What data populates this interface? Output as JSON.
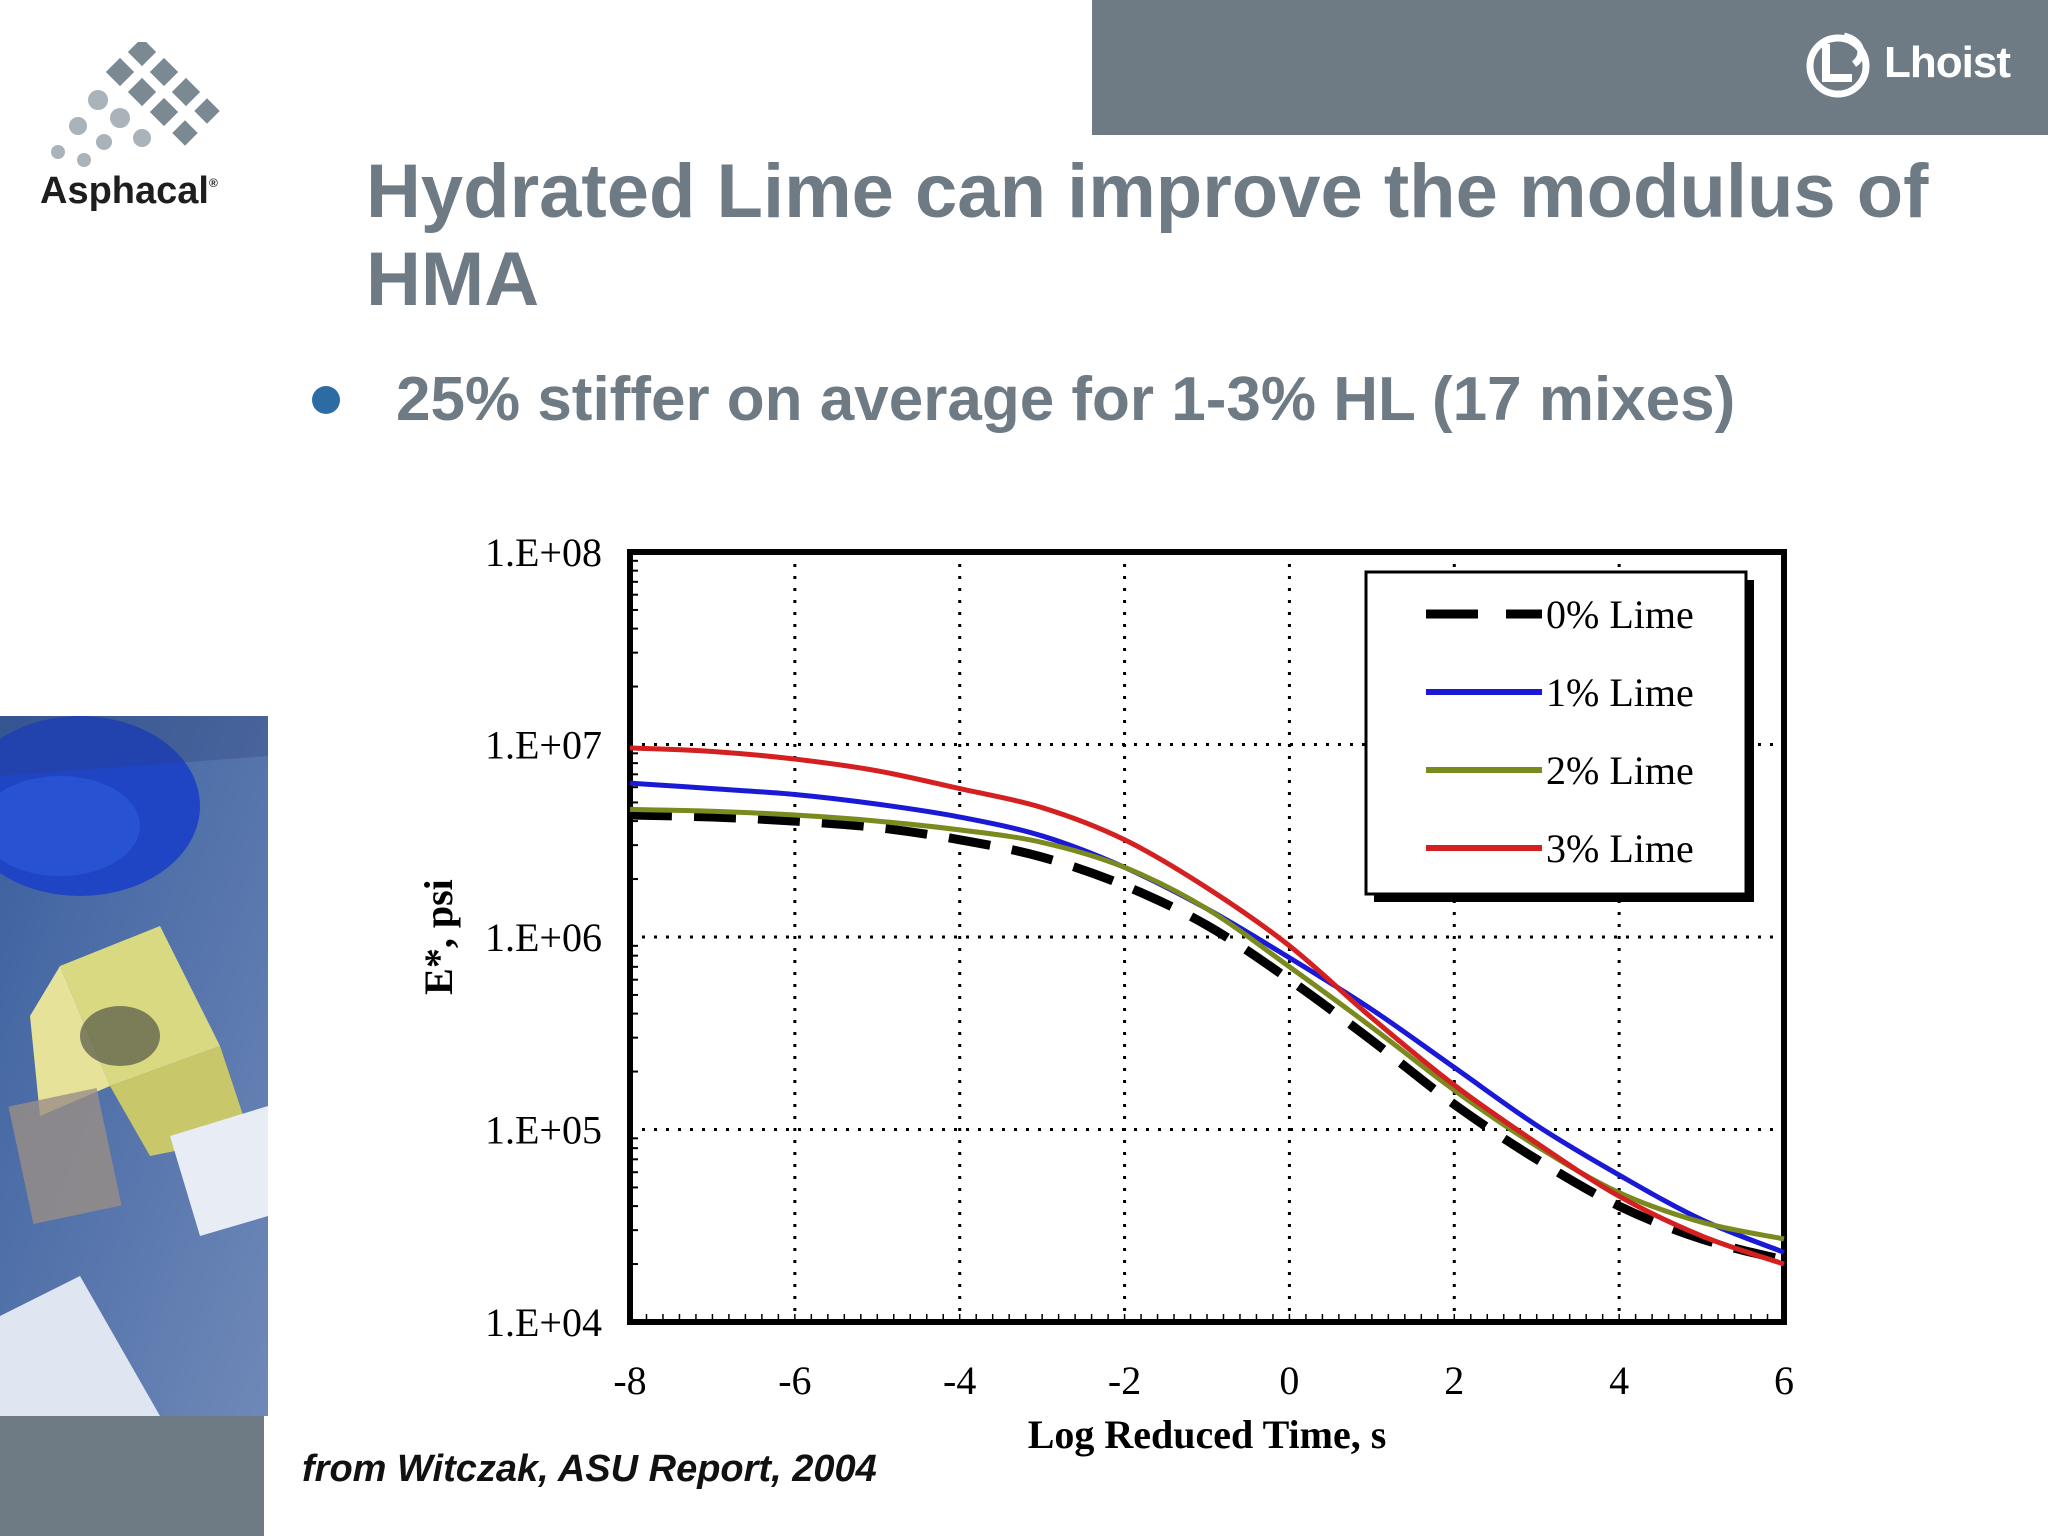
{
  "header": {
    "left_logo": {
      "name": "Asphacal",
      "reg_mark": "®",
      "icon": "diamond-grid-icon"
    },
    "right_logo": {
      "name": "Lhoist",
      "icon": "lhoist-mark-icon"
    },
    "colors": {
      "bar": "#6e7a84",
      "title": "#6e7a84",
      "bullet": "#2c6ba3"
    }
  },
  "slide": {
    "title": "Hydrated Lime can improve the modulus of HMA",
    "bullet": "25% stiffer on average for 1-3% HL (17 mixes)",
    "source": "from Witczak, ASU Report, 2004"
  },
  "chart_data": {
    "type": "line",
    "title": "",
    "xlabel": "Log Reduced Time, s",
    "ylabel": "E*, psi",
    "xlim": [
      -8,
      6
    ],
    "ylim": [
      10000,
      100000000
    ],
    "y_scale": "log",
    "x_ticks": [
      "-8",
      "-6",
      "-4",
      "-2",
      "0",
      "2",
      "4",
      "6"
    ],
    "y_ticks": [
      "1.E+04",
      "1.E+05",
      "1.E+06",
      "1.E+07",
      "1.E+08"
    ],
    "grid": "dotted",
    "legend_position": "top-right",
    "x": [
      -8,
      -7,
      -6,
      -5,
      -4,
      -3,
      -2,
      -1,
      0,
      1,
      2,
      3,
      4,
      5,
      6
    ],
    "series": [
      {
        "name": "0% Lime",
        "color": "#000000",
        "style": "dashed",
        "values": [
          4300000,
          4200000,
          4000000,
          3700000,
          3200000,
          2600000,
          1850000,
          1150000,
          600000,
          290000,
          135000,
          70000,
          40000,
          27000,
          21000
        ]
      },
      {
        "name": "1% Lime",
        "color": "#1a1ad6",
        "style": "solid",
        "values": [
          6300000,
          5900000,
          5500000,
          4900000,
          4200000,
          3350000,
          2300000,
          1400000,
          780000,
          420000,
          210000,
          105000,
          58000,
          34000,
          23000
        ]
      },
      {
        "name": "2% Lime",
        "color": "#7a8a1e",
        "style": "solid",
        "values": [
          4600000,
          4500000,
          4300000,
          4000000,
          3600000,
          3100000,
          2300000,
          1400000,
          700000,
          340000,
          160000,
          82000,
          47000,
          33000,
          27000
        ]
      },
      {
        "name": "3% Lime",
        "color": "#d42020",
        "style": "solid",
        "values": [
          9600000,
          9200000,
          8400000,
          7300000,
          5900000,
          4700000,
          3200000,
          1800000,
          900000,
          380000,
          170000,
          85000,
          45000,
          28000,
          20000
        ]
      }
    ]
  }
}
